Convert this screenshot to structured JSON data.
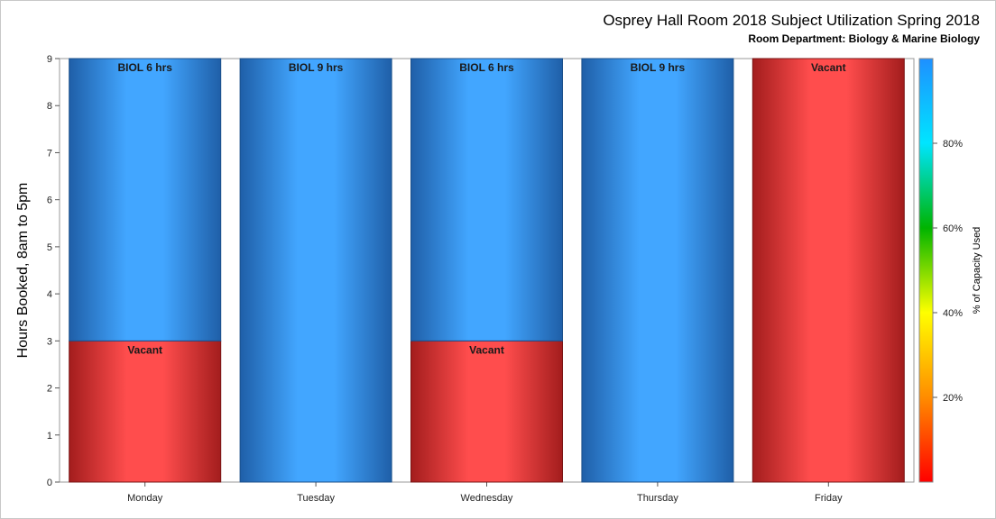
{
  "colors": {
    "booked_edge": "#1f5fa8",
    "booked_light": "#42a6ff",
    "vacant_edge": "#a31d1d",
    "vacant_light": "#ff4d4d",
    "gradient_stops": [
      "#ff0000",
      "#ff8c00",
      "#ffff00",
      "#00b400",
      "#00e5ff",
      "#1e90ff"
    ]
  },
  "chart_data": {
    "type": "bar",
    "stacked": true,
    "title": "Osprey Hall Room 2018 Subject Utilization Spring 2018",
    "subtitle": "Room Department:  Biology & Marine Biology",
    "xlabel": "",
    "ylabel": "Hours Booked, 8am to 5pm",
    "ylim": [
      0,
      9
    ],
    "yticks": [
      0,
      1,
      2,
      3,
      4,
      5,
      6,
      7,
      8,
      9
    ],
    "categories": [
      "Monday",
      "Tuesday",
      "Wednesday",
      "Thursday",
      "Friday"
    ],
    "segments": [
      [
        {
          "kind": "vacant",
          "value": 3,
          "label": "Vacant"
        },
        {
          "kind": "booked",
          "value": 6,
          "label": "BIOL 6 hrs"
        }
      ],
      [
        {
          "kind": "booked",
          "value": 9,
          "label": "BIOL 9 hrs"
        }
      ],
      [
        {
          "kind": "vacant",
          "value": 3,
          "label": "Vacant"
        },
        {
          "kind": "booked",
          "value": 6,
          "label": "BIOL 6 hrs"
        }
      ],
      [
        {
          "kind": "booked",
          "value": 9,
          "label": "BIOL 9 hrs"
        }
      ],
      [
        {
          "kind": "vacant",
          "value": 9,
          "label": "Vacant"
        }
      ]
    ],
    "color_legend": {
      "title": "% of Capacity Used",
      "range": [
        0,
        100
      ],
      "ticks": [
        20,
        40,
        60,
        80
      ],
      "tick_labels": [
        "20%",
        "40%",
        "60%",
        "80%"
      ],
      "placement": "right"
    },
    "grid": false
  }
}
